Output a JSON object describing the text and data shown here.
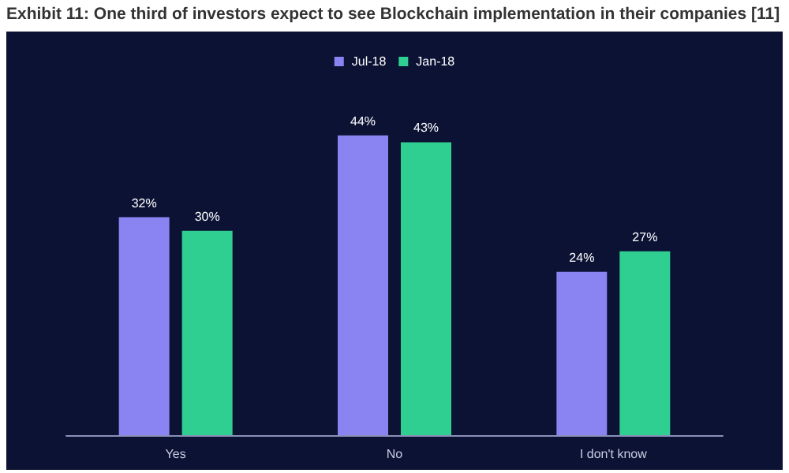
{
  "chart_data": {
    "type": "bar",
    "title": "Exhibit 11: One third of investors expect to see Blockchain implementation in their companies [11]",
    "categories": [
      "Yes",
      "No",
      "I don't know"
    ],
    "series": [
      {
        "name": "Jul-18",
        "color": "#8a84f2",
        "values": [
          32,
          44,
          24
        ],
        "value_labels": [
          "32%",
          "44%",
          "24%"
        ]
      },
      {
        "name": "Jan-18",
        "color": "#2fcf91",
        "values": [
          30,
          43,
          27
        ],
        "value_labels": [
          "30%",
          "43%",
          "27%"
        ]
      }
    ],
    "legend": "top"
  }
}
